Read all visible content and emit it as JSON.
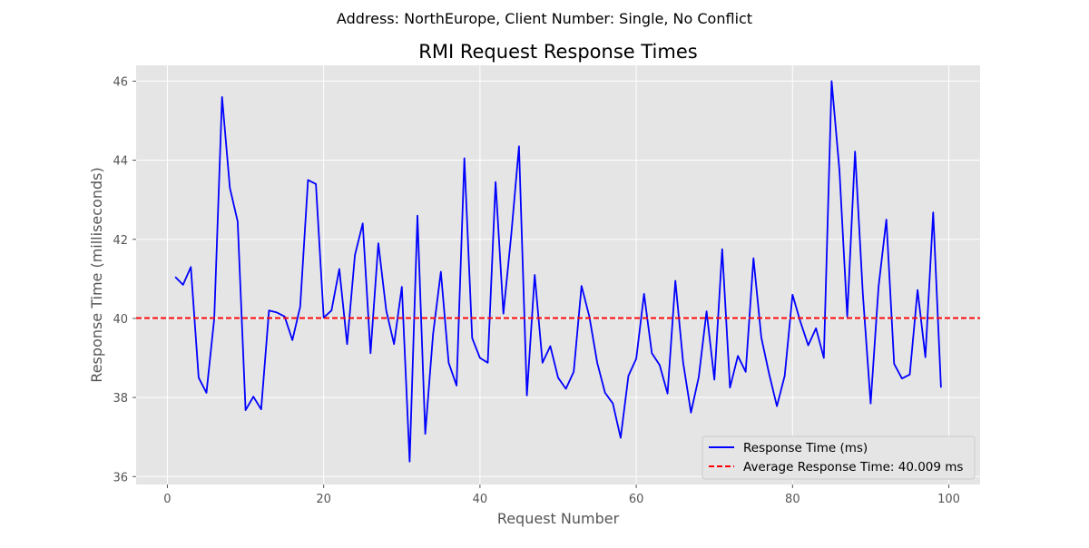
{
  "chart_data": {
    "type": "line",
    "suptitle": "Address: NorthEurope, Client Number: Single, No Conflict",
    "title": "RMI Request Response Times",
    "xlabel": "Request Number",
    "ylabel": "Response Time (milliseconds)",
    "xlim": [
      -4,
      104
    ],
    "ylim": [
      35.8,
      46.4
    ],
    "xticks": [
      0,
      20,
      40,
      60,
      80,
      100
    ],
    "yticks": [
      36,
      38,
      40,
      42,
      44,
      46
    ],
    "xtick_labels": [
      "0",
      "20",
      "40",
      "60",
      "80",
      "100"
    ],
    "ytick_labels": [
      "36",
      "38",
      "40",
      "42",
      "44",
      "46"
    ],
    "grid": true,
    "legend_position": "lower-right",
    "series": [
      {
        "name": "Response Time (ms)",
        "color": "#0000ff",
        "style": "solid",
        "x": [
          1,
          2,
          3,
          4,
          5,
          6,
          7,
          8,
          9,
          10,
          11,
          12,
          13,
          14,
          15,
          16,
          17,
          18,
          19,
          20,
          21,
          22,
          23,
          24,
          25,
          26,
          27,
          28,
          29,
          30,
          31,
          32,
          33,
          34,
          35,
          36,
          37,
          38,
          39,
          40,
          41,
          42,
          43,
          44,
          45,
          46,
          47,
          48,
          49,
          50,
          51,
          52,
          53,
          54,
          55,
          56,
          57,
          58,
          59,
          60,
          61,
          62,
          63,
          64,
          65,
          66,
          67,
          68,
          69,
          70,
          71,
          72,
          73,
          74,
          75,
          76,
          77,
          78,
          79,
          80,
          81,
          82,
          83,
          84,
          85,
          86,
          87,
          88,
          89,
          90,
          91,
          92,
          93,
          94,
          95,
          96,
          97,
          98,
          99
        ],
        "values": [
          41.05,
          40.85,
          41.3,
          38.5,
          38.12,
          40.0,
          45.6,
          43.3,
          42.45,
          37.68,
          38.02,
          37.7,
          40.2,
          40.15,
          40.05,
          39.45,
          40.3,
          43.5,
          43.4,
          40.02,
          40.2,
          41.25,
          39.35,
          41.6,
          42.4,
          39.12,
          41.9,
          40.2,
          39.35,
          40.8,
          36.38,
          42.6,
          37.08,
          39.6,
          41.18,
          38.88,
          38.3,
          44.05,
          39.5,
          39.0,
          38.88,
          43.45,
          40.12,
          42.1,
          44.35,
          38.05,
          41.1,
          38.88,
          39.3,
          38.5,
          38.22,
          38.65,
          40.82,
          40.05,
          38.88,
          38.12,
          37.85,
          36.98,
          38.55,
          38.98,
          40.62,
          39.12,
          38.82,
          38.1,
          40.95,
          38.88,
          37.62,
          38.52,
          40.18,
          38.45,
          41.75,
          38.25,
          39.05,
          38.65,
          41.52,
          39.52,
          38.6,
          37.78,
          38.55,
          40.6,
          39.92,
          39.32,
          39.75,
          39.0,
          46.0,
          43.75,
          40.05,
          44.22,
          40.62,
          37.85,
          40.8,
          42.5,
          38.85,
          38.48,
          38.58,
          40.72,
          39.02,
          42.68,
          38.25
        ]
      },
      {
        "name": "Average Response Time: 40.009 ms",
        "color": "#ff0000",
        "style": "dashed",
        "value": 40.009
      }
    ]
  }
}
